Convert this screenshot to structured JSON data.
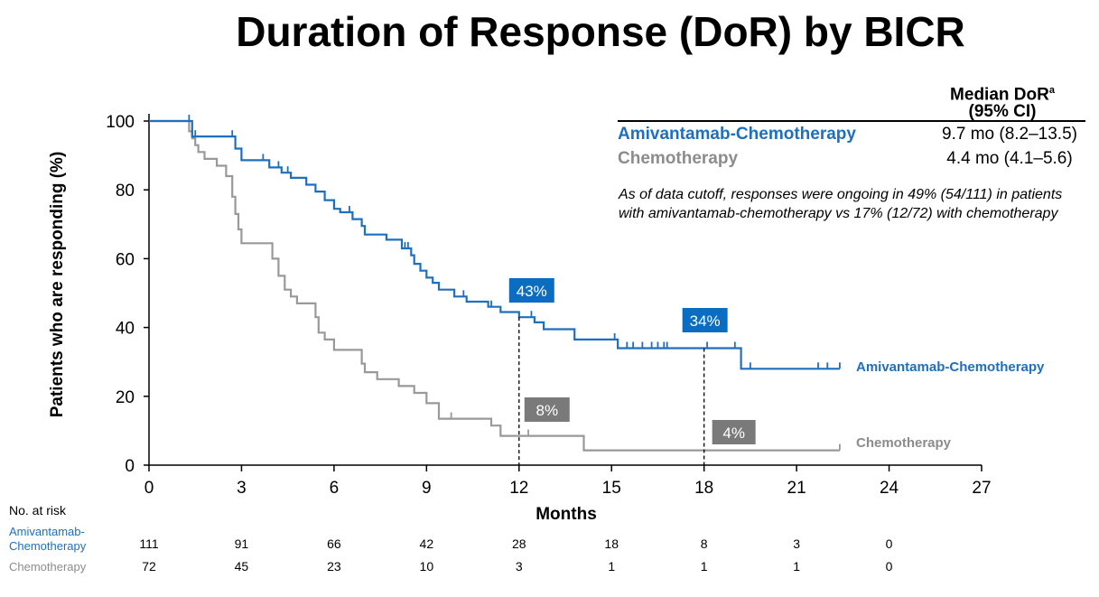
{
  "title": "Duration of Response (DoR) by BICR",
  "table": {
    "header": "Median DoR",
    "header_sup": "a",
    "header_ci": "(95% CI)",
    "rows": [
      {
        "name": "Amivantamab-Chemotherapy",
        "value": "9.7 mo (8.2–13.5)",
        "color": "#1f6fbf"
      },
      {
        "name": "Chemotherapy",
        "value": "4.4 mo (4.1–5.6)",
        "color": "#8c8c8c"
      }
    ]
  },
  "note": "As of data cutoff, responses were ongoing in 49% (54/111) in patients with amivantamab-chemotherapy vs 17% (12/72) with chemotherapy",
  "chart_data": {
    "type": "line",
    "xlabel": "Months",
    "ylabel": "Patients who are responding (%)",
    "xlim": [
      0,
      27
    ],
    "ylim": [
      0,
      100
    ],
    "xticks": [
      0,
      3,
      6,
      9,
      12,
      15,
      18,
      21,
      24,
      27
    ],
    "yticks": [
      0,
      20,
      40,
      60,
      80,
      100
    ],
    "grid": false,
    "series": [
      {
        "name": "Amivantamab-Chemotherapy",
        "color": "#1f6fbf",
        "step_points": [
          [
            0,
            100
          ],
          [
            1.4,
            100
          ],
          [
            1.4,
            95.5
          ],
          [
            2.8,
            95.5
          ],
          [
            2.8,
            92
          ],
          [
            3,
            92
          ],
          [
            3,
            88.6
          ],
          [
            3.9,
            88.6
          ],
          [
            3.9,
            86.5
          ],
          [
            4.3,
            86.5
          ],
          [
            4.3,
            85
          ],
          [
            4.6,
            85
          ],
          [
            4.6,
            83.5
          ],
          [
            5.1,
            83.5
          ],
          [
            5.1,
            81.5
          ],
          [
            5.4,
            81.5
          ],
          [
            5.4,
            79.5
          ],
          [
            5.7,
            79.5
          ],
          [
            5.7,
            77
          ],
          [
            6,
            77
          ],
          [
            6,
            74.5
          ],
          [
            6.2,
            74.5
          ],
          [
            6.2,
            73.5
          ],
          [
            6.6,
            73.5
          ],
          [
            6.6,
            71.5
          ],
          [
            6.9,
            71.5
          ],
          [
            6.9,
            69.5
          ],
          [
            7,
            69.5
          ],
          [
            7,
            67
          ],
          [
            7.7,
            67
          ],
          [
            7.7,
            65.5
          ],
          [
            8.2,
            65.5
          ],
          [
            8.2,
            63
          ],
          [
            8.5,
            63
          ],
          [
            8.5,
            61
          ],
          [
            8.6,
            61
          ],
          [
            8.6,
            58.5
          ],
          [
            8.8,
            58.5
          ],
          [
            8.8,
            56.5
          ],
          [
            9,
            56.5
          ],
          [
            9,
            54.5
          ],
          [
            9.2,
            54.5
          ],
          [
            9.2,
            53
          ],
          [
            9.4,
            53
          ],
          [
            9.4,
            51
          ],
          [
            9.9,
            51
          ],
          [
            9.9,
            49
          ],
          [
            10.3,
            49
          ],
          [
            10.3,
            47.5
          ],
          [
            11,
            47.5
          ],
          [
            11,
            46
          ],
          [
            11.4,
            46
          ],
          [
            11.4,
            44.5
          ],
          [
            12,
            44.5
          ],
          [
            12,
            43
          ],
          [
            12.5,
            43
          ],
          [
            12.5,
            41.5
          ],
          [
            12.8,
            41.5
          ],
          [
            12.8,
            39.5
          ],
          [
            13.8,
            39.5
          ],
          [
            13.8,
            36.5
          ],
          [
            15.2,
            36.5
          ],
          [
            15.2,
            34
          ],
          [
            19.2,
            34
          ],
          [
            19.2,
            28
          ],
          [
            22.4,
            28
          ]
        ],
        "censor_x": [
          1.3,
          1.5,
          2.7,
          3.7,
          4.2,
          4.5,
          6.5,
          8.2,
          8.3,
          8.4,
          10.2,
          11.1,
          12.4,
          15.1,
          15.5,
          15.7,
          16,
          16.3,
          16.5,
          16.7,
          16.8,
          18.1,
          19,
          19.5,
          21.7,
          22,
          22.4
        ],
        "at_risk": [
          "111",
          "91",
          "66",
          "42",
          "28",
          "18",
          "8",
          "3",
          "0"
        ]
      },
      {
        "name": "Chemotherapy",
        "color": "#999999",
        "step_points": [
          [
            0,
            100
          ],
          [
            1.3,
            100
          ],
          [
            1.3,
            97
          ],
          [
            1.4,
            97
          ],
          [
            1.4,
            95
          ],
          [
            1.5,
            95
          ],
          [
            1.5,
            93
          ],
          [
            1.6,
            93
          ],
          [
            1.6,
            91
          ],
          [
            1.8,
            91
          ],
          [
            1.8,
            89
          ],
          [
            2.2,
            89
          ],
          [
            2.2,
            87
          ],
          [
            2.5,
            87
          ],
          [
            2.5,
            84
          ],
          [
            2.7,
            84
          ],
          [
            2.7,
            78
          ],
          [
            2.8,
            78
          ],
          [
            2.8,
            73
          ],
          [
            2.9,
            73
          ],
          [
            2.9,
            68.5
          ],
          [
            3,
            68.5
          ],
          [
            3,
            64.5
          ],
          [
            4,
            64.5
          ],
          [
            4,
            60
          ],
          [
            4.2,
            60
          ],
          [
            4.2,
            55
          ],
          [
            4.4,
            55
          ],
          [
            4.4,
            51
          ],
          [
            4.6,
            51
          ],
          [
            4.6,
            49
          ],
          [
            4.8,
            49
          ],
          [
            4.8,
            47
          ],
          [
            5.4,
            47
          ],
          [
            5.4,
            43
          ],
          [
            5.5,
            43
          ],
          [
            5.5,
            38.5
          ],
          [
            5.7,
            38.5
          ],
          [
            5.7,
            36.5
          ],
          [
            6,
            36.5
          ],
          [
            6,
            33.5
          ],
          [
            6.9,
            33.5
          ],
          [
            6.9,
            29.5
          ],
          [
            7,
            29.5
          ],
          [
            7,
            27
          ],
          [
            7.4,
            27
          ],
          [
            7.4,
            25
          ],
          [
            8.1,
            25
          ],
          [
            8.1,
            23
          ],
          [
            8.6,
            23
          ],
          [
            8.6,
            21
          ],
          [
            9,
            21
          ],
          [
            9,
            18
          ],
          [
            9.4,
            18
          ],
          [
            9.4,
            13.5
          ],
          [
            11.1,
            13.5
          ],
          [
            11.1,
            11.5
          ],
          [
            11.4,
            11.5
          ],
          [
            11.4,
            8.5
          ],
          [
            14.1,
            8.5
          ],
          [
            14.1,
            4.3
          ],
          [
            22.4,
            4.3
          ]
        ],
        "censor_x": [
          6.9,
          9.8,
          12.3,
          22.4
        ],
        "at_risk": [
          "72",
          "45",
          "23",
          "10",
          "3",
          "1",
          "1",
          "1",
          "0"
        ]
      }
    ],
    "annotations": [
      {
        "x": 12,
        "y": 43,
        "label": "43%",
        "series": "Amivantamab-Chemotherapy"
      },
      {
        "x": 18,
        "y": 34,
        "label": "34%",
        "series": "Amivantamab-Chemotherapy"
      },
      {
        "x": 12,
        "y": 8,
        "label": "8%",
        "series": "Chemotherapy"
      },
      {
        "x": 18,
        "y": 4,
        "label": "4%",
        "series": "Chemotherapy"
      }
    ],
    "end_labels": [
      "Amivantamab-Chemotherapy",
      "Chemotherapy"
    ],
    "at_risk_title": "No. at risk",
    "at_risk_labels": [
      "Amivantamab-\nChemotherapy",
      "Chemotherapy"
    ],
    "at_risk_label_lines": [
      [
        "Amivantamab-",
        "Chemotherapy"
      ],
      [
        "Chemotherapy"
      ]
    ],
    "at_risk_x": [
      0,
      3,
      6,
      9,
      12,
      15,
      18,
      21,
      24
    ]
  }
}
